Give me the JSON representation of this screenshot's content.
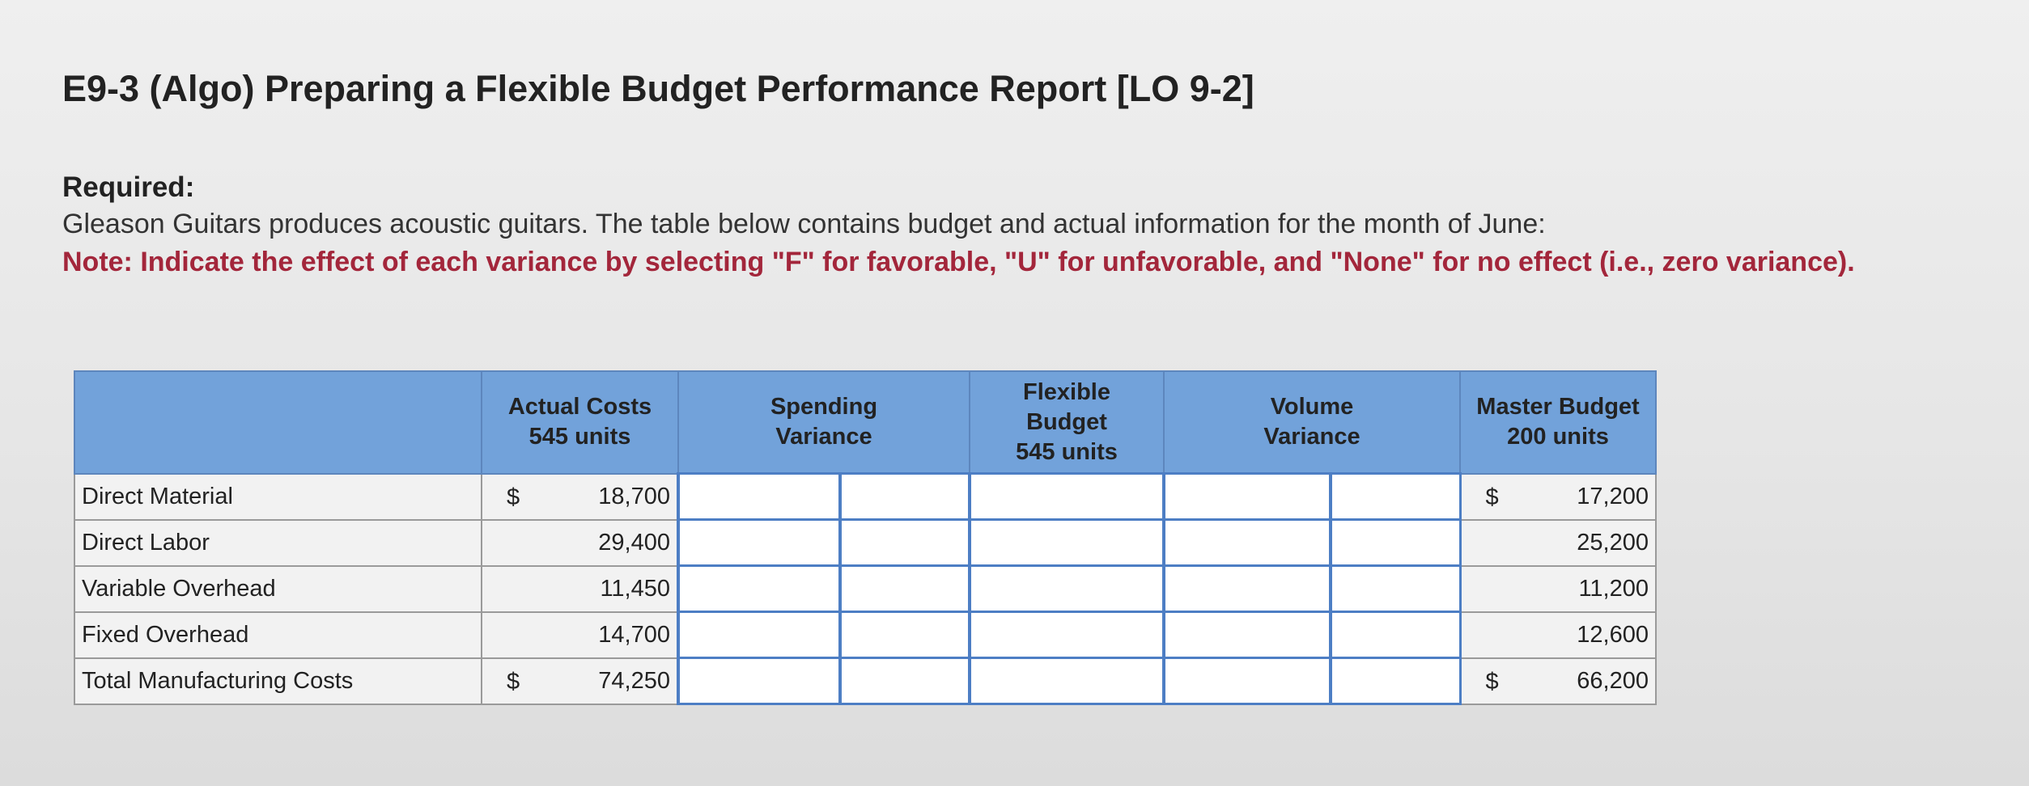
{
  "header": {
    "title": "E9-3 (Algo) Preparing a Flexible Budget Performance Report [LO 9-2]"
  },
  "required": {
    "label": "Required:",
    "intro": "Gleason Guitars produces acoustic guitars. The table below contains budget and actual information for the month of June:",
    "note": "Note: Indicate the effect of each variance by selecting \"F\" for favorable, \"U\" for unfavorable, and \"None\" for no effect (i.e., zero variance)."
  },
  "table": {
    "headers": [
      [
        "Actual Costs",
        "545 units"
      ],
      [
        "Spending",
        "Variance"
      ],
      [
        "Flexible",
        "Budget",
        "545 units"
      ],
      [
        "Volume",
        "Variance"
      ],
      [
        "Master Budget",
        "200 units"
      ]
    ],
    "rows": [
      {
        "label": "Direct Material",
        "actual": {
          "sign": "$",
          "value": "18,700"
        },
        "master": {
          "sign": "$",
          "value": "17,200"
        }
      },
      {
        "label": "Direct Labor",
        "actual": {
          "value": "29,400"
        },
        "master": {
          "value": "25,200"
        }
      },
      {
        "label": "Variable Overhead",
        "actual": {
          "value": "11,450"
        },
        "master": {
          "value": "11,200"
        }
      },
      {
        "label": "Fixed Overhead",
        "actual": {
          "value": "14,700"
        },
        "master": {
          "value": "12,600"
        }
      },
      {
        "label": "Total Manufacturing Costs",
        "actual": {
          "sign": "$",
          "value": "74,250"
        },
        "master": {
          "sign": "$",
          "value": "66,200"
        }
      }
    ]
  }
}
